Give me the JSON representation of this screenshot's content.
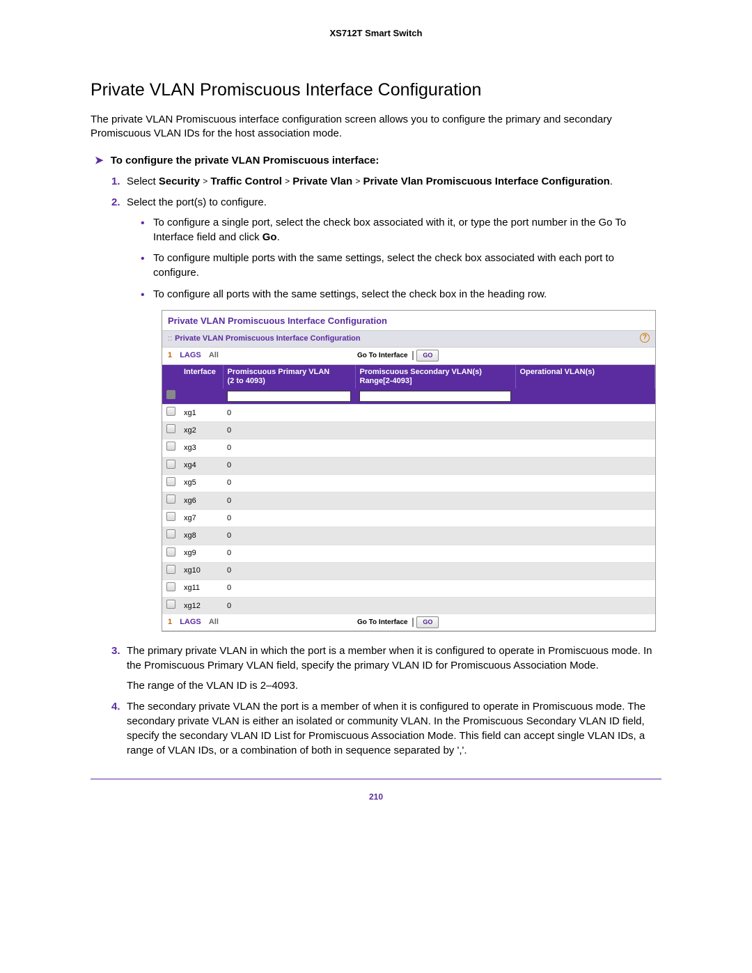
{
  "doc_header": "XS712T Smart Switch",
  "section_title": "Private VLAN Promiscuous Interface Configuration",
  "intro": "The private VLAN Promiscuous interface configuration screen allows you to configure the primary and secondary Promiscuous VLAN IDs for the host association mode.",
  "task_arrow": "➤",
  "task_head": "To configure the private VLAN Promiscuous interface:",
  "step1_pre": "Select ",
  "step1_path": [
    "Security",
    "Traffic Control",
    "Private Vlan",
    "Private Vlan Promiscuous Interface Configuration"
  ],
  "step1_gt": ">",
  "step1_post": ".",
  "step2": "Select the port(s) to configure.",
  "step2_b1a": "To configure a single port, select the check box associated with it, or type the port number in the Go To Interface field and click ",
  "step2_b1b": "Go",
  "step2_b1c": ".",
  "step2_b2": "To configure multiple ports with the same settings, select the check box associated with each port to configure.",
  "step2_b3": "To configure all ports with the same settings, select the check box in the heading row.",
  "step3": "The primary private VLAN in which the port is a member when it is configured to operate in Promiscuous mode. In the Promiscuous Primary VLAN field, specify the primary VLAN ID for Promiscuous Association Mode.",
  "step3_p2": "The range of the VLAN ID is 2–4093.",
  "step4": "The secondary private VLAN the port is a member of when it is configured to operate in Promiscuous mode. The secondary private VLAN is either an isolated or community VLAN. In the Promiscuous Secondary VLAN ID field, specify the secondary VLAN ID List for Promiscuous Association Mode. This field can accept single VLAN IDs, a range of VLAN IDs, or a combination of both in sequence separated by ','.",
  "screenshot": {
    "title": "Private VLAN Promiscuous Interface Configuration",
    "subhead": "Private VLAN Promiscuous Interface Configuration",
    "tabs": {
      "t1": "1",
      "t2": "LAGS",
      "t3": "All"
    },
    "go_label": "Go To Interface",
    "go_btn": "GO",
    "columns": {
      "c2": "Interface",
      "c3a": "Promiscuous Primary VLAN",
      "c3b": "(2 to 4093)",
      "c4a": "Promiscuous Secondary VLAN(s)",
      "c4b": "Range[2-4093]",
      "c5": "Operational VLAN(s)"
    },
    "rows": [
      {
        "iface": "xg1",
        "val": "0",
        "alt": false
      },
      {
        "iface": "xg2",
        "val": "0",
        "alt": true
      },
      {
        "iface": "xg3",
        "val": "0",
        "alt": false
      },
      {
        "iface": "xg4",
        "val": "0",
        "alt": true
      },
      {
        "iface": "xg5",
        "val": "0",
        "alt": false
      },
      {
        "iface": "xg6",
        "val": "0",
        "alt": true
      },
      {
        "iface": "xg7",
        "val": "0",
        "alt": false
      },
      {
        "iface": "xg8",
        "val": "0",
        "alt": true
      },
      {
        "iface": "xg9",
        "val": "0",
        "alt": false
      },
      {
        "iface": "xg10",
        "val": "0",
        "alt": true
      },
      {
        "iface": "xg11",
        "val": "0",
        "alt": false
      },
      {
        "iface": "xg12",
        "val": "0",
        "alt": true
      }
    ]
  },
  "page_num": "210"
}
